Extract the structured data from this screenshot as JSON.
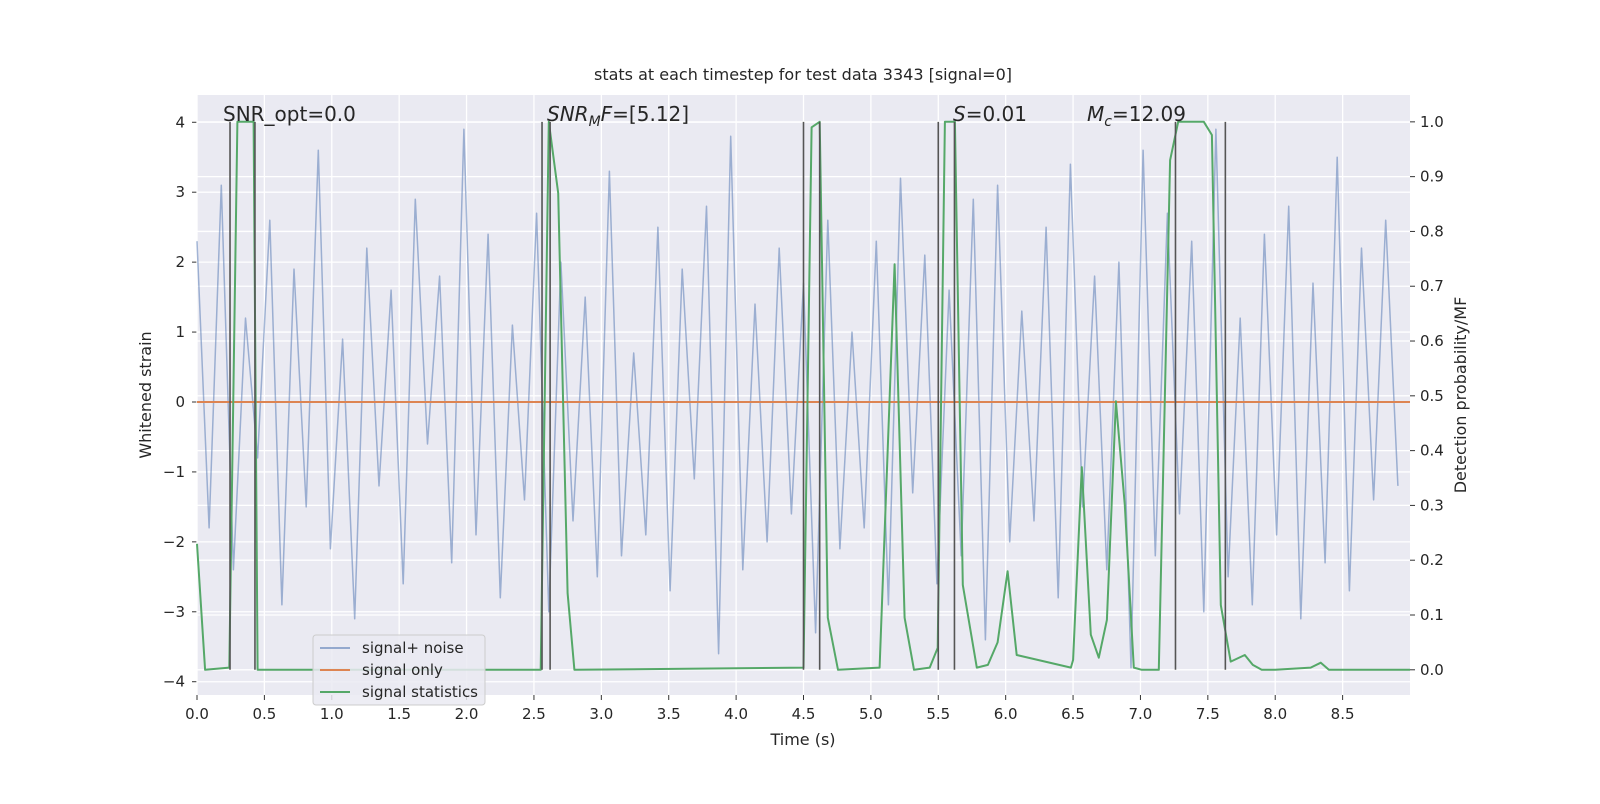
{
  "chart_data": {
    "type": "line",
    "title": "stats at each timestep for test data 3343 [signal=0]",
    "xlabel": "Time (s)",
    "ylabel": "Whitened strain",
    "y2label": "Detection probability/MF",
    "xlim": [
      0,
      9
    ],
    "ylim": [
      -4.19,
      4.39
    ],
    "y2lim": [
      -0.046,
      1.049
    ],
    "xticks": [
      {
        "value": 0,
        "label": "0.0"
      },
      0.5,
      {
        "value": 1,
        "label": "1.0"
      },
      1.5,
      {
        "value": 2,
        "label": "2.0"
      },
      2.5,
      {
        "value": 3,
        "label": "3.0"
      },
      3.5,
      {
        "value": 4,
        "label": "4.0"
      },
      4.5,
      {
        "value": 5,
        "label": "5.0"
      },
      5.5,
      {
        "value": 6,
        "label": "6.0"
      },
      6.5,
      {
        "value": 7,
        "label": "7.0"
      },
      7.5,
      {
        "value": 8,
        "label": "8.0"
      },
      8.5
    ],
    "yticks": [
      {
        "value": -4,
        "label": "−4"
      },
      {
        "value": -3,
        "label": "−3"
      },
      {
        "value": -2,
        "label": "−2"
      },
      {
        "value": -1,
        "label": "−1"
      },
      0,
      1,
      2,
      3,
      4
    ],
    "y2ticks": [
      {
        "value": 0,
        "label": "0.0"
      },
      0.1,
      0.2,
      0.3,
      0.4,
      0.5,
      0.6,
      0.7,
      0.8,
      0.9,
      {
        "value": 1,
        "label": "1.0"
      }
    ],
    "grid": true,
    "legend": "lower left",
    "series": [
      {
        "name": "signal+ noise",
        "color": "#4c72b0",
        "x": [
          0,
          0.09,
          0.18,
          0.27,
          0.36,
          0.45,
          0.54,
          0.63,
          0.72,
          0.81,
          0.9,
          0.99,
          1.08,
          1.17,
          1.26,
          1.35,
          1.44,
          1.53,
          1.62,
          1.71,
          1.8,
          1.89,
          1.98,
          2.07,
          2.16,
          2.25,
          2.34,
          2.43,
          2.52,
          2.61,
          2.7,
          2.79,
          2.88,
          2.97,
          3.06,
          3.15,
          3.24,
          3.33,
          3.42,
          3.51,
          3.6,
          3.69,
          3.78,
          3.87,
          3.96,
          4.05,
          4.14,
          4.23,
          4.32,
          4.41,
          4.5,
          4.59,
          4.68,
          4.77,
          4.86,
          4.95,
          5.04,
          5.13,
          5.22,
          5.31,
          5.4,
          5.49,
          5.58,
          5.67,
          5.76,
          5.85,
          5.94,
          6.03,
          6.12,
          6.21,
          6.3,
          6.39,
          6.48,
          6.57,
          6.66,
          6.75,
          6.84,
          6.93,
          7.02,
          7.11,
          7.2,
          7.29,
          7.38,
          7.47,
          7.56,
          7.65,
          7.74,
          7.83,
          7.92,
          8.01,
          8.1,
          8.19,
          8.28,
          8.37,
          8.46,
          8.55,
          8.64,
          8.73,
          8.82,
          8.91
        ],
        "values": [
          2.3,
          -1.8,
          3.1,
          -2.4,
          1.2,
          -0.8,
          2.6,
          -2.9,
          1.9,
          -1.5,
          3.6,
          -2.1,
          0.9,
          -3.1,
          2.2,
          -1.2,
          1.6,
          -2.6,
          2.9,
          -0.6,
          1.8,
          -2.3,
          3.9,
          -1.9,
          2.4,
          -2.8,
          1.1,
          -1.4,
          2.7,
          -3.0,
          2.0,
          -1.7,
          1.5,
          -2.5,
          3.3,
          -2.2,
          0.7,
          -1.9,
          2.5,
          -2.7,
          1.9,
          -1.1,
          2.8,
          -3.6,
          3.8,
          -2.4,
          1.4,
          -2.0,
          2.2,
          -1.6,
          1.7,
          -3.3,
          2.6,
          -2.1,
          1.0,
          -1.8,
          2.3,
          -2.9,
          3.2,
          -1.3,
          2.1,
          -2.6,
          1.6,
          -2.2,
          2.9,
          -3.4,
          3.1,
          -2.0,
          1.3,
          -1.7,
          2.5,
          -2.8,
          3.4,
          -1.5,
          1.8,
          -2.4,
          2.0,
          -3.8,
          3.6,
          -2.2,
          2.7,
          -1.6,
          2.3,
          -3.0,
          3.9,
          -2.5,
          1.2,
          -2.9,
          2.4,
          -1.9,
          2.8,
          -3.1,
          1.7,
          -2.3,
          3.5,
          -2.7,
          2.2,
          -1.4,
          2.6,
          -1.2
        ]
      },
      {
        "name": "signal only",
        "color": "#dd8452",
        "x": [
          0,
          9
        ],
        "values": [
          0,
          0
        ]
      },
      {
        "name": "signal statistics",
        "color": "#55a868",
        "axis": "y2",
        "x": [
          0,
          0.06,
          0.24,
          0.3,
          0.42,
          0.45,
          2.55,
          2.61,
          2.68,
          2.75,
          2.8,
          4.5,
          4.56,
          4.62,
          4.68,
          4.756,
          5.065,
          5.176,
          5.25,
          5.32,
          5.436,
          5.496,
          5.549,
          5.623,
          5.682,
          5.786,
          5.868,
          5.94,
          6.014,
          6.082,
          6.484,
          6.5,
          6.565,
          6.632,
          6.691,
          6.751,
          6.818,
          6.884,
          6.951,
          7.01,
          7.136,
          7.22,
          7.28,
          7.47,
          7.53,
          7.596,
          7.67,
          7.774,
          7.834,
          7.9,
          8.0,
          8.263,
          8.338,
          8.398,
          9.0
        ],
        "values": [
          0.23,
          0,
          0.004,
          1.0,
          1.0,
          0,
          0,
          1.0,
          0.87,
          0.14,
          0,
          0.004,
          0.99,
          1.0,
          0.095,
          0,
          0.004,
          0.74,
          0.095,
          0,
          0.004,
          0.04,
          1.0,
          1.0,
          0.155,
          0.004,
          0.009,
          0.05,
          0.18,
          0.027,
          0.004,
          0.018,
          0.37,
          0.064,
          0.022,
          0.091,
          0.49,
          0.301,
          0.004,
          0,
          0,
          0.93,
          1.0,
          1.0,
          0.976,
          0.118,
          0.015,
          0.027,
          0.009,
          0,
          0,
          0.004,
          0.013,
          0,
          0
        ]
      }
    ],
    "vlines": {
      "color": "#555555",
      "x": [
        0.245,
        0.43,
        2.56,
        2.62,
        4.5,
        4.62,
        5.5,
        5.62,
        7.26,
        7.63
      ],
      "range": [
        0,
        1
      ]
    },
    "annotations": [
      {
        "segments": [
          {
            "text": "SNR_opt=0.0"
          }
        ]
      },
      {
        "segments": [
          {
            "text": "SNR",
            "italic": true
          },
          {
            "text": "M",
            "italic": true,
            "sub": true
          },
          {
            "text": "F",
            "italic": true
          },
          {
            "text": "=[5.12]"
          }
        ]
      },
      {
        "segments": [
          {
            "text": "S",
            "italic": true
          },
          {
            "text": "=0.01"
          }
        ]
      },
      {
        "segments": [
          {
            "text": "M",
            "italic": true
          },
          {
            "text": "c",
            "italic": true,
            "sub": true
          },
          {
            "text": "=12.09"
          }
        ]
      }
    ]
  }
}
